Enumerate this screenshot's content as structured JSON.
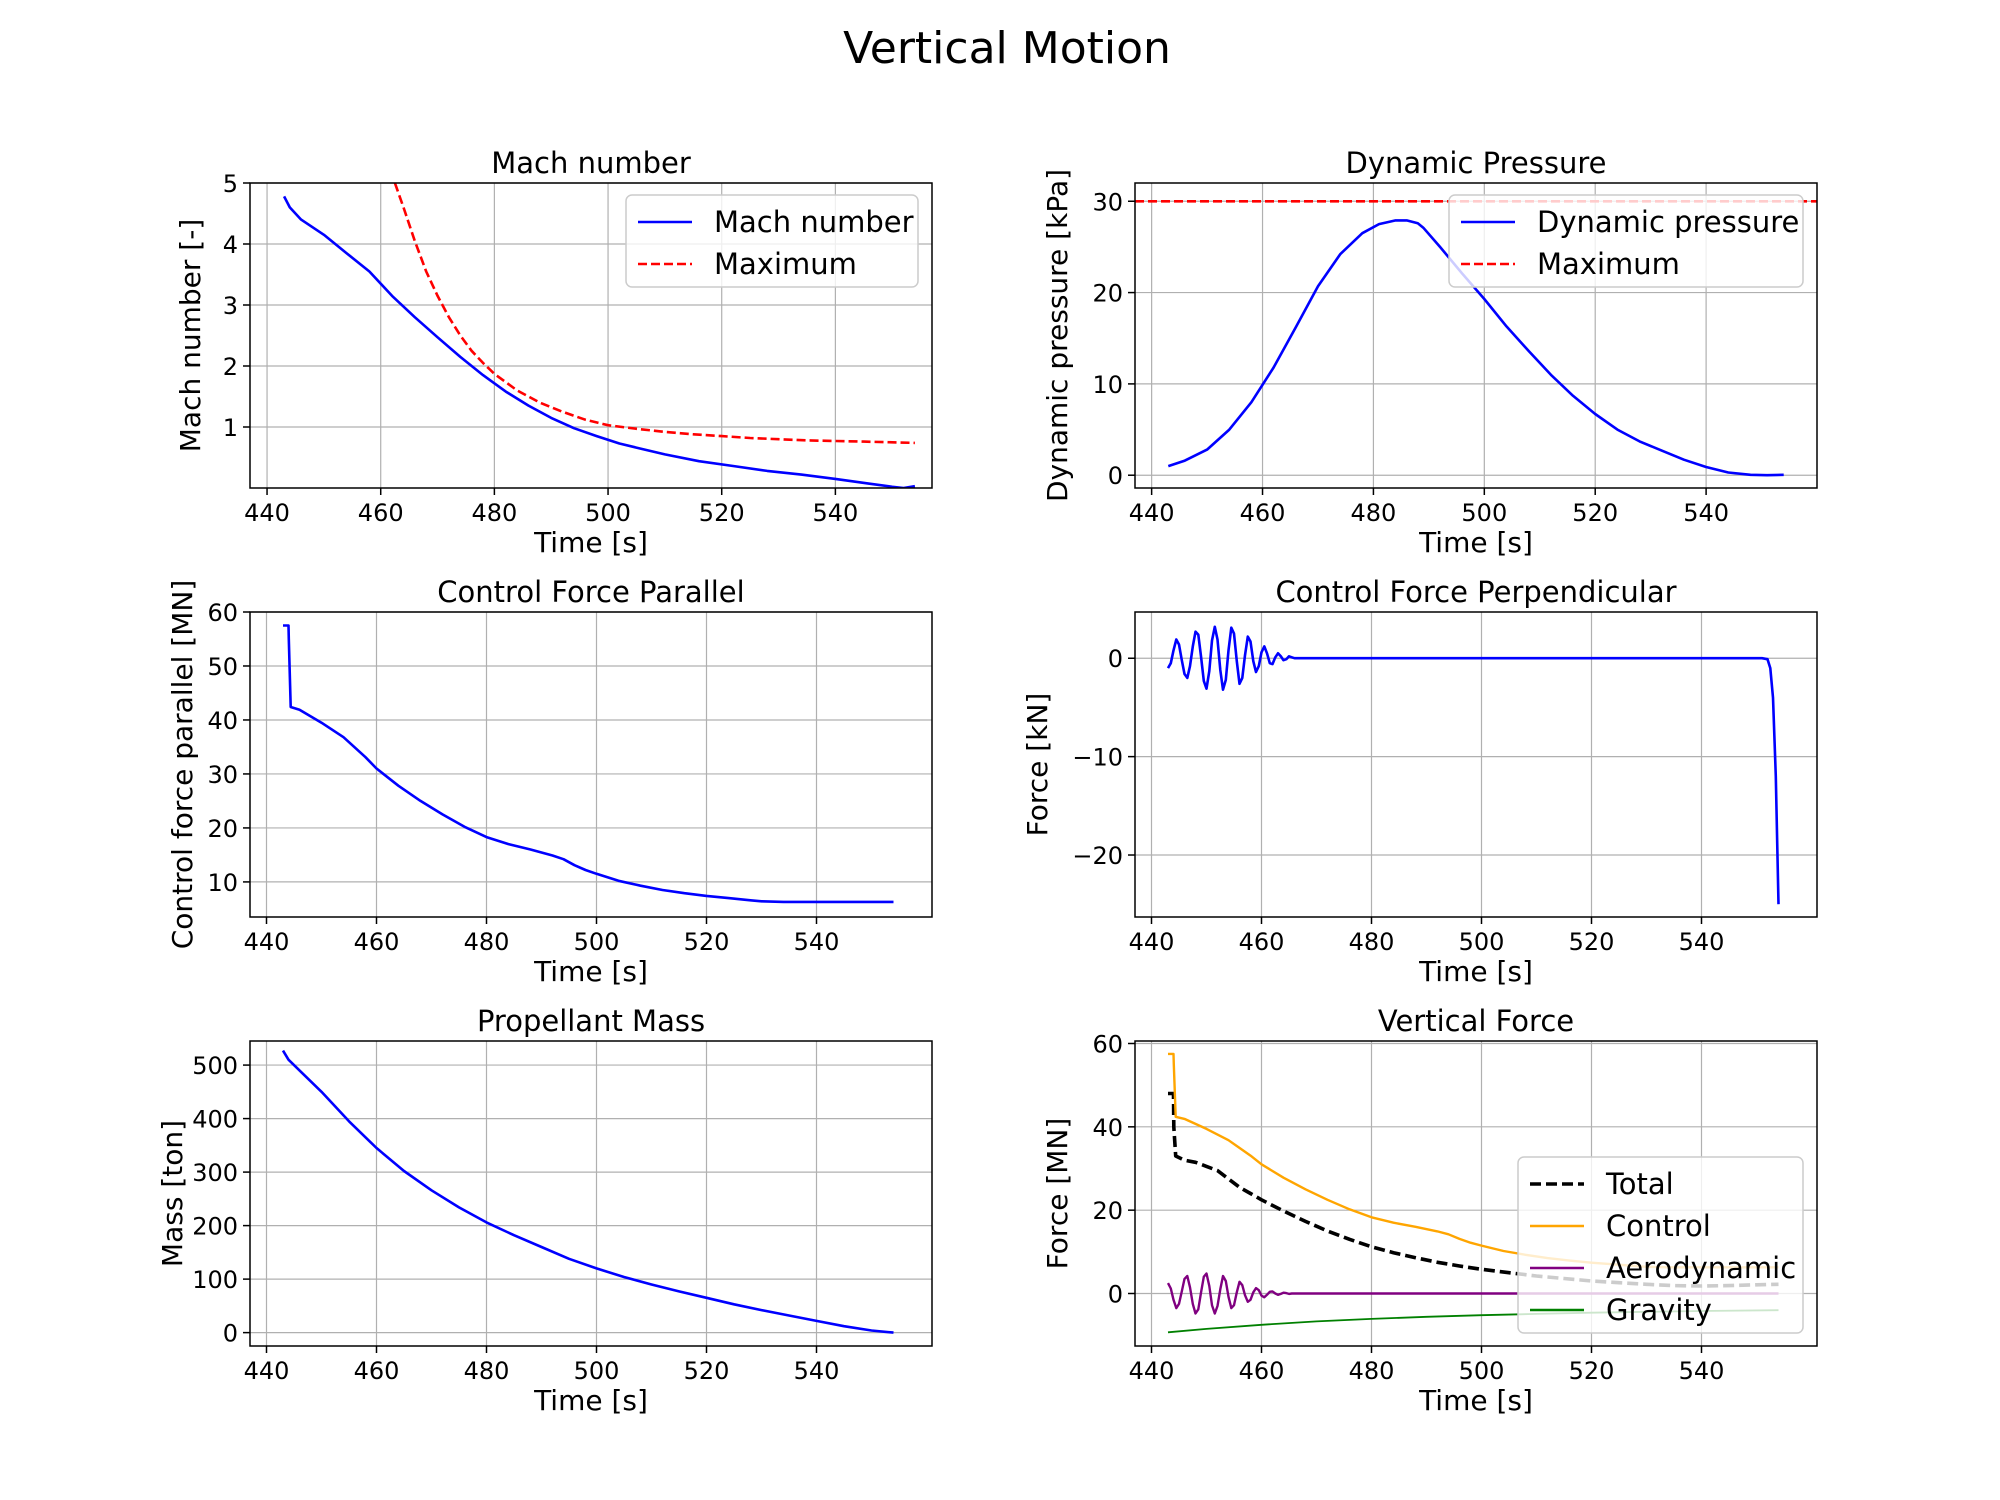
{
  "figure_title": "Vertical Motion",
  "chart_data": [
    {
      "type": "line",
      "title": "Mach number",
      "xlabel": "Time [s]",
      "ylabel": "Mach number [-]",
      "xlim": [
        437,
        557
      ],
      "ylim": [
        0,
        5
      ],
      "xticks": [
        440,
        460,
        480,
        500,
        520,
        540
      ],
      "yticks": [
        1,
        2,
        3,
        4,
        5
      ],
      "ytick_labels": [
        "1",
        "2",
        "3",
        "4",
        "5"
      ],
      "grid": true,
      "legend": "upper right",
      "series": [
        {
          "name": "Mach number",
          "color": "#0000ff",
          "style": "solid",
          "x": [
            443,
            444,
            446,
            450,
            454,
            458,
            462,
            466,
            470,
            474,
            478,
            482,
            486,
            490,
            494,
            498,
            502,
            506,
            510,
            516,
            522,
            528,
            534,
            540,
            546,
            550,
            552,
            554
          ],
          "y": [
            4.78,
            4.6,
            4.4,
            4.15,
            3.85,
            3.55,
            3.15,
            2.8,
            2.47,
            2.15,
            1.85,
            1.58,
            1.35,
            1.15,
            0.98,
            0.85,
            0.73,
            0.64,
            0.55,
            0.44,
            0.36,
            0.28,
            0.22,
            0.15,
            0.07,
            0.02,
            0.0,
            0.03
          ]
        },
        {
          "name": "Maximum",
          "color": "#ff0000",
          "style": "dashed",
          "x": [
            462.5,
            464,
            466,
            468,
            470,
            472,
            474,
            476,
            478,
            480,
            484,
            488,
            492,
            496,
            500,
            505,
            510,
            515,
            520,
            525,
            530,
            535,
            540,
            545,
            550,
            554
          ],
          "y": [
            5.0,
            4.6,
            4.05,
            3.55,
            3.15,
            2.8,
            2.5,
            2.25,
            2.05,
            1.87,
            1.6,
            1.4,
            1.25,
            1.12,
            1.03,
            0.97,
            0.92,
            0.88,
            0.85,
            0.82,
            0.8,
            0.78,
            0.77,
            0.76,
            0.75,
            0.74
          ]
        }
      ]
    },
    {
      "type": "line",
      "title": "Dynamic Pressure",
      "xlabel": "Time [s]",
      "ylabel": "Dynamic pressure [kPa]",
      "xlim": [
        437,
        560
      ],
      "ylim": [
        -1.4,
        32
      ],
      "xticks": [
        440,
        460,
        480,
        500,
        520,
        540
      ],
      "yticks": [
        0,
        10,
        20,
        30
      ],
      "ytick_labels": [
        "0",
        "10",
        "20",
        "30"
      ],
      "grid": true,
      "legend": "upper right",
      "series": [
        {
          "name": "Dynamic pressure",
          "color": "#0000ff",
          "style": "solid",
          "x": [
            443,
            446,
            450,
            454,
            458,
            462,
            466,
            470,
            474,
            478,
            481,
            484,
            486,
            488,
            489,
            492,
            496,
            500,
            504,
            508,
            512,
            516,
            520,
            524,
            528,
            532,
            536,
            540,
            544,
            548,
            551,
            554
          ],
          "y": [
            1.0,
            1.6,
            2.8,
            5.0,
            8.0,
            11.8,
            16.2,
            20.7,
            24.2,
            26.5,
            27.5,
            27.9,
            27.9,
            27.6,
            27.1,
            25.0,
            22.1,
            19.3,
            16.3,
            13.6,
            11.0,
            8.7,
            6.7,
            5.0,
            3.7,
            2.7,
            1.7,
            0.9,
            0.3,
            0.05,
            0.0,
            0.05
          ]
        },
        {
          "name": "Maximum",
          "color": "#ff0000",
          "style": "dashed",
          "x": [
            437,
            560
          ],
          "y": [
            30,
            30
          ]
        }
      ]
    },
    {
      "type": "line",
      "title": "Control Force Parallel",
      "xlabel": "Time [s]",
      "ylabel": "Control force parallel [MN]",
      "xlim": [
        437,
        561
      ],
      "ylim": [
        3.5,
        60
      ],
      "xticks": [
        440,
        460,
        480,
        500,
        520,
        540
      ],
      "yticks": [
        10,
        20,
        30,
        40,
        50,
        60
      ],
      "ytick_labels": [
        "10",
        "20",
        "30",
        "40",
        "50",
        "60"
      ],
      "grid": true,
      "legend": "none",
      "series": [
        {
          "name": "",
          "color": "#0000ff",
          "style": "solid",
          "x": [
            443,
            444,
            444.05,
            444.4,
            446,
            450,
            454,
            458,
            460,
            464,
            468,
            472,
            476,
            480,
            484,
            488,
            492,
            494,
            496,
            498,
            500,
            504,
            508,
            512,
            516,
            520,
            524,
            528,
            530,
            534,
            540,
            546,
            554
          ],
          "y": [
            57.5,
            57.5,
            55,
            42.4,
            41.9,
            39.5,
            36.8,
            33.1,
            31.0,
            27.8,
            25.0,
            22.5,
            20.2,
            18.3,
            17.0,
            16.0,
            14.9,
            14.2,
            13.1,
            12.2,
            11.5,
            10.2,
            9.3,
            8.5,
            7.9,
            7.4,
            7.0,
            6.6,
            6.4,
            6.3,
            6.3,
            6.3,
            6.3
          ]
        }
      ]
    },
    {
      "type": "line",
      "title": "Control Force Perpendicular",
      "xlabel": "Time [s]",
      "ylabel": "Force [kN]",
      "xlim": [
        437,
        561
      ],
      "ylim": [
        -26.3,
        4.7
      ],
      "xticks": [
        440,
        460,
        480,
        500,
        520,
        540
      ],
      "yticks": [
        -20,
        -10,
        0
      ],
      "ytick_labels": [
        "−20",
        "−10",
        "0"
      ],
      "grid": true,
      "legend": "none",
      "series": [
        {
          "name": "",
          "color": "#0000ff",
          "style": "solid",
          "x": [
            443,
            443.5,
            444,
            444.5,
            445,
            445.5,
            446,
            446.5,
            447,
            447.5,
            448,
            448.5,
            449,
            449.5,
            450,
            450.5,
            451,
            451.5,
            452,
            452.5,
            453,
            453.5,
            454,
            454.5,
            455,
            455.5,
            456,
            456.5,
            457,
            457.5,
            458,
            458.5,
            459,
            459.5,
            460,
            460.5,
            461,
            461.5,
            462,
            462.5,
            463,
            463.5,
            464,
            464.5,
            465,
            465.5,
            466,
            470,
            500,
            530,
            550,
            551,
            552,
            552.5,
            553,
            553.5,
            554
          ],
          "y": [
            -1.0,
            -0.5,
            0.8,
            1.9,
            1.4,
            -0.2,
            -1.6,
            -2.0,
            -0.8,
            1.2,
            2.7,
            2.4,
            0.2,
            -2.3,
            -3.1,
            -1.3,
            1.8,
            3.2,
            1.9,
            -1.2,
            -3.2,
            -2.2,
            0.8,
            3.1,
            2.5,
            -0.3,
            -2.6,
            -2.0,
            0.3,
            2.2,
            1.7,
            -0.3,
            -1.4,
            -0.8,
            0.6,
            1.2,
            0.5,
            -0.5,
            -0.6,
            0.1,
            0.5,
            0.2,
            -0.2,
            -0.1,
            0.2,
            0.1,
            0.0,
            0.0,
            0.0,
            0.0,
            0.0,
            0.0,
            -0.1,
            -1.0,
            -4.0,
            -12.0,
            -25.0
          ]
        }
      ]
    },
    {
      "type": "line",
      "title": "Propellant Mass",
      "xlabel": "Time [s]",
      "ylabel": "Mass [ton]",
      "xlim": [
        437,
        561
      ],
      "ylim": [
        -25,
        545
      ],
      "xticks": [
        440,
        460,
        480,
        500,
        520,
        540
      ],
      "yticks": [
        0,
        100,
        200,
        300,
        400,
        500
      ],
      "ytick_labels": [
        "0",
        "100",
        "200",
        "300",
        "400",
        "500"
      ],
      "grid": true,
      "legend": "none",
      "series": [
        {
          "name": "",
          "color": "#0000ff",
          "style": "solid",
          "x": [
            443,
            444,
            446,
            450,
            455,
            460,
            465,
            470,
            475,
            480,
            485,
            490,
            495,
            500,
            505,
            510,
            515,
            520,
            525,
            530,
            535,
            540,
            545,
            550,
            554
          ],
          "y": [
            527,
            510,
            490,
            450,
            395,
            345,
            302,
            266,
            234,
            206,
            182,
            160,
            138,
            120,
            104,
            90,
            77,
            65,
            53,
            42,
            32,
            22,
            12,
            4,
            0
          ]
        }
      ]
    },
    {
      "type": "line",
      "title": "Vertical Force",
      "xlabel": "Time [s]",
      "ylabel": "Force [MN]",
      "xlim": [
        437,
        561
      ],
      "ylim": [
        -12.6,
        60.6
      ],
      "xticks": [
        440,
        460,
        480,
        500,
        520,
        540
      ],
      "yticks": [
        0,
        20,
        40,
        60
      ],
      "ytick_labels": [
        "0",
        "20",
        "40",
        "60"
      ],
      "grid": true,
      "legend": "lower right",
      "series": [
        {
          "name": "Total",
          "color": "#000000",
          "style": "dashed",
          "x": [
            443,
            444,
            444.05,
            444.4,
            446,
            448,
            450,
            452,
            454,
            456,
            458,
            460,
            464,
            468,
            472,
            476,
            480,
            484,
            488,
            492,
            496,
            500,
            505,
            510,
            515,
            520,
            525,
            530,
            535,
            540,
            545,
            550,
            554
          ],
          "y": [
            48,
            48,
            40,
            33,
            32,
            31.5,
            30.5,
            29.5,
            27.5,
            25.5,
            24,
            22.5,
            19.8,
            17.3,
            15,
            13,
            11.2,
            9.8,
            8.6,
            7.5,
            6.6,
            5.8,
            5.0,
            4.2,
            3.6,
            3.0,
            2.6,
            2.2,
            1.9,
            1.8,
            1.9,
            2.1,
            2.2
          ]
        },
        {
          "name": "Control",
          "color": "#ffa500",
          "style": "solid",
          "x": [
            443,
            444,
            444.05,
            444.4,
            446,
            450,
            454,
            458,
            460,
            464,
            468,
            472,
            476,
            480,
            484,
            488,
            492,
            494,
            496,
            498,
            500,
            504,
            508,
            512,
            516,
            520,
            524,
            528,
            530,
            534,
            540,
            546,
            554
          ],
          "y": [
            57.5,
            57.5,
            55,
            42.4,
            41.9,
            39.5,
            36.8,
            33.1,
            31.0,
            27.8,
            25.0,
            22.5,
            20.2,
            18.3,
            17.0,
            16.0,
            14.9,
            14.2,
            13.1,
            12.2,
            11.5,
            10.2,
            9.3,
            8.5,
            7.9,
            7.4,
            7.0,
            6.6,
            6.4,
            6.3,
            6.3,
            6.3,
            6.3
          ]
        },
        {
          "name": "Aerodynamic",
          "color": "#800080",
          "style": "solid",
          "x": [
            443,
            443.5,
            444,
            444.5,
            445,
            445.5,
            446,
            446.5,
            447,
            447.5,
            448,
            448.5,
            449,
            449.5,
            450,
            450.5,
            451,
            451.5,
            452,
            452.5,
            453,
            453.5,
            454,
            454.5,
            455,
            455.5,
            456,
            456.5,
            457,
            457.5,
            458,
            458.5,
            459,
            459.5,
            460,
            460.5,
            461,
            461.5,
            462,
            462.5,
            463,
            463.5,
            464,
            464.5,
            465,
            465.5,
            466,
            470,
            500,
            530,
            554
          ],
          "y": [
            2.5,
            1.2,
            -1.5,
            -3.5,
            -2.5,
            0.5,
            3.5,
            4.2,
            1.5,
            -2.5,
            -4.8,
            -3.8,
            0.2,
            4.0,
            4.8,
            1.8,
            -2.8,
            -4.8,
            -3.0,
            1.0,
            4.2,
            3.0,
            -0.8,
            -3.5,
            -2.8,
            0.3,
            2.8,
            2.0,
            -0.4,
            -2.0,
            -1.5,
            0.3,
            1.3,
            0.8,
            -0.5,
            -0.9,
            -0.3,
            0.4,
            0.5,
            0.0,
            -0.3,
            -0.1,
            0.2,
            0.1,
            -0.1,
            0.0,
            0.0,
            0.0,
            0.0,
            0.0,
            0.0
          ]
        },
        {
          "name": "Gravity",
          "color": "#008000",
          "style": "solid",
          "x": [
            443,
            450,
            460,
            470,
            480,
            490,
            500,
            510,
            520,
            530,
            540,
            554
          ],
          "y": [
            -9.3,
            -8.5,
            -7.5,
            -6.7,
            -6.1,
            -5.6,
            -5.2,
            -4.9,
            -4.6,
            -4.4,
            -4.2,
            -4.0
          ]
        }
      ]
    }
  ]
}
